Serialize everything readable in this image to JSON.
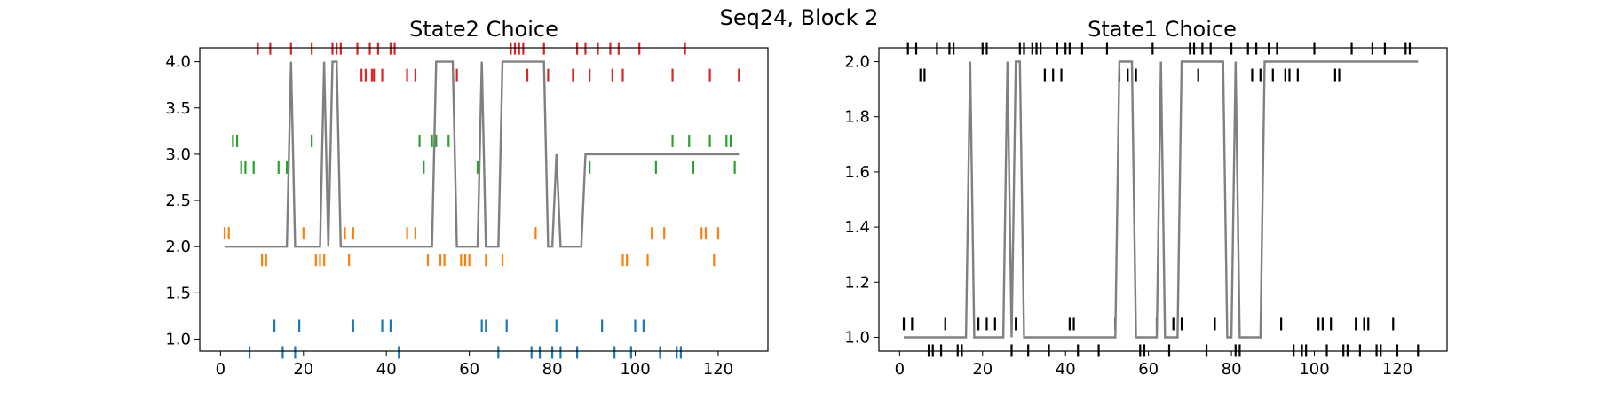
{
  "figure": {
    "suptitle": "Seq24, Block 2"
  },
  "chart_data": [
    {
      "type": "line",
      "title": "State2 Choice",
      "xlabel": "",
      "ylabel": "",
      "xlim": [
        -5,
        132
      ],
      "ylim": [
        0.87,
        4.15
      ],
      "xticks": [
        0,
        20,
        40,
        60,
        80,
        100,
        120
      ],
      "yticks": [
        1.0,
        1.5,
        2.0,
        2.5,
        3.0,
        3.5,
        4.0
      ],
      "ytick_labels": [
        "1.0",
        "1.5",
        "2.0",
        "2.5",
        "3.0",
        "3.5",
        "4.0"
      ],
      "grid": false,
      "tick_series": [
        {
          "level": 4,
          "color": "#d62728",
          "events": [
            {
              "x": 9,
              "o": 1
            },
            {
              "x": 12,
              "o": 1
            },
            {
              "x": 17,
              "o": 1
            },
            {
              "x": 22,
              "o": 1
            },
            {
              "x": 27,
              "o": 1
            },
            {
              "x": 28,
              "o": 1
            },
            {
              "x": 29,
              "o": 1
            },
            {
              "x": 33,
              "o": 1
            },
            {
              "x": 34,
              "o": -1
            },
            {
              "x": 35,
              "o": -1
            },
            {
              "x": 36,
              "o": 1
            },
            {
              "x": 36.5,
              "o": -1
            },
            {
              "x": 37,
              "o": -1
            },
            {
              "x": 38,
              "o": 1
            },
            {
              "x": 39,
              "o": -1
            },
            {
              "x": 41,
              "o": 1
            },
            {
              "x": 42,
              "o": 1
            },
            {
              "x": 45,
              "o": -1
            },
            {
              "x": 47,
              "o": -1
            },
            {
              "x": 57,
              "o": -1
            },
            {
              "x": 70,
              "o": 1
            },
            {
              "x": 71,
              "o": 1
            },
            {
              "x": 72,
              "o": 1
            },
            {
              "x": 73,
              "o": 1
            },
            {
              "x": 74,
              "o": -1
            },
            {
              "x": 78,
              "o": 1
            },
            {
              "x": 79,
              "o": -1
            },
            {
              "x": 85,
              "o": -1
            },
            {
              "x": 86,
              "o": 1
            },
            {
              "x": 88,
              "o": 1
            },
            {
              "x": 89,
              "o": -1
            },
            {
              "x": 91,
              "o": 1
            },
            {
              "x": 94,
              "o": 1
            },
            {
              "x": 94.5,
              "o": -1
            },
            {
              "x": 96,
              "o": 1
            },
            {
              "x": 97,
              "o": -1
            },
            {
              "x": 101,
              "o": 1
            },
            {
              "x": 109,
              "o": -1
            },
            {
              "x": 112,
              "o": 1
            },
            {
              "x": 118,
              "o": -1
            },
            {
              "x": 125,
              "o": -1
            }
          ]
        },
        {
          "level": 3,
          "color": "#2ca02c",
          "events": [
            {
              "x": 3,
              "o": 1
            },
            {
              "x": 4,
              "o": 1
            },
            {
              "x": 5,
              "o": -1
            },
            {
              "x": 6,
              "o": -1
            },
            {
              "x": 8,
              "o": -1
            },
            {
              "x": 14,
              "o": -1
            },
            {
              "x": 16,
              "o": -1
            },
            {
              "x": 22,
              "o": 1
            },
            {
              "x": 48,
              "o": 1
            },
            {
              "x": 49,
              "o": -1
            },
            {
              "x": 51,
              "o": 1
            },
            {
              "x": 52,
              "o": 1
            },
            {
              "x": 55,
              "o": 1
            },
            {
              "x": 62,
              "o": -1
            },
            {
              "x": 89,
              "o": -1
            },
            {
              "x": 105,
              "o": -1
            },
            {
              "x": 109,
              "o": 1
            },
            {
              "x": 113,
              "o": 1
            },
            {
              "x": 114,
              "o": -1
            },
            {
              "x": 118,
              "o": 1
            },
            {
              "x": 122,
              "o": 1
            },
            {
              "x": 123,
              "o": 1
            },
            {
              "x": 124,
              "o": -1
            }
          ]
        },
        {
          "level": 2,
          "color": "#ff7f0e",
          "events": [
            {
              "x": 1,
              "o": 1
            },
            {
              "x": 2,
              "o": 1
            },
            {
              "x": 10,
              "o": -1
            },
            {
              "x": 11,
              "o": -1
            },
            {
              "x": 20,
              "o": 1
            },
            {
              "x": 23,
              "o": -1
            },
            {
              "x": 24,
              "o": -1
            },
            {
              "x": 25,
              "o": -1
            },
            {
              "x": 30,
              "o": 1
            },
            {
              "x": 31,
              "o": -1
            },
            {
              "x": 32,
              "o": 1
            },
            {
              "x": 45,
              "o": 1
            },
            {
              "x": 47,
              "o": 1
            },
            {
              "x": 50,
              "o": -1
            },
            {
              "x": 53,
              "o": -1
            },
            {
              "x": 54,
              "o": -1
            },
            {
              "x": 58,
              "o": -1
            },
            {
              "x": 59,
              "o": -1
            },
            {
              "x": 60,
              "o": -1
            },
            {
              "x": 64,
              "o": -1
            },
            {
              "x": 68,
              "o": -1
            },
            {
              "x": 76,
              "o": 1
            },
            {
              "x": 97,
              "o": -1
            },
            {
              "x": 98,
              "o": -1
            },
            {
              "x": 103,
              "o": -1
            },
            {
              "x": 104,
              "o": 1
            },
            {
              "x": 107,
              "o": 1
            },
            {
              "x": 116,
              "o": 1
            },
            {
              "x": 117,
              "o": 1
            },
            {
              "x": 119,
              "o": -1
            },
            {
              "x": 120,
              "o": 1
            }
          ]
        },
        {
          "level": 1,
          "color": "#1f77b4",
          "events": [
            {
              "x": 7,
              "o": -1
            },
            {
              "x": 13,
              "o": 1
            },
            {
              "x": 15,
              "o": -1
            },
            {
              "x": 18,
              "o": -1
            },
            {
              "x": 19,
              "o": 1
            },
            {
              "x": 32,
              "o": 1
            },
            {
              "x": 39,
              "o": 1
            },
            {
              "x": 41,
              "o": 1
            },
            {
              "x": 43,
              "o": -1
            },
            {
              "x": 63,
              "o": 1
            },
            {
              "x": 64,
              "o": 1
            },
            {
              "x": 67,
              "o": -1
            },
            {
              "x": 69,
              "o": 1
            },
            {
              "x": 75,
              "o": -1
            },
            {
              "x": 77,
              "o": -1
            },
            {
              "x": 80,
              "o": -1
            },
            {
              "x": 81,
              "o": 1
            },
            {
              "x": 82,
              "o": -1
            },
            {
              "x": 86,
              "o": -1
            },
            {
              "x": 92,
              "o": 1
            },
            {
              "x": 95,
              "o": -1
            },
            {
              "x": 99,
              "o": -1
            },
            {
              "x": 100,
              "o": 1
            },
            {
              "x": 102,
              "o": 1
            },
            {
              "x": 106,
              "o": -1
            },
            {
              "x": 110,
              "o": -1
            },
            {
              "x": 111,
              "o": -1
            }
          ]
        }
      ],
      "trace": {
        "color": "#808080",
        "x": [
          1,
          16,
          17,
          18,
          24,
          25,
          26,
          27,
          28,
          29,
          51,
          52,
          56,
          57,
          62,
          63,
          64,
          67,
          68,
          78,
          79,
          80,
          81,
          82,
          87,
          88,
          125
        ],
        "y": [
          2,
          2,
          4,
          2,
          2,
          4,
          2,
          4,
          4,
          2,
          2,
          4,
          4,
          2,
          2,
          4,
          2,
          2,
          4,
          4,
          2,
          2,
          3,
          2,
          2,
          3,
          3
        ]
      }
    },
    {
      "type": "line",
      "title": "State1 Choice",
      "xlabel": "",
      "ylabel": "",
      "xlim": [
        -5,
        132
      ],
      "ylim": [
        0.95,
        2.05
      ],
      "xticks": [
        0,
        20,
        40,
        60,
        80,
        100,
        120
      ],
      "yticks": [
        1.0,
        1.2,
        1.4,
        1.6,
        1.8,
        2.0
      ],
      "ytick_labels": [
        "1.0",
        "1.2",
        "1.4",
        "1.6",
        "1.8",
        "2.0"
      ],
      "grid": false,
      "tick_series": [
        {
          "level": 2,
          "color": "#000000",
          "events": [
            {
              "x": 2,
              "o": 1
            },
            {
              "x": 4,
              "o": 1
            },
            {
              "x": 5,
              "o": -1
            },
            {
              "x": 6,
              "o": -1
            },
            {
              "x": 9,
              "o": 1
            },
            {
              "x": 12,
              "o": 1
            },
            {
              "x": 13,
              "o": 1
            },
            {
              "x": 20,
              "o": 1
            },
            {
              "x": 21,
              "o": 1
            },
            {
              "x": 29,
              "o": 1
            },
            {
              "x": 30,
              "o": 1
            },
            {
              "x": 32,
              "o": 1
            },
            {
              "x": 33,
              "o": 1
            },
            {
              "x": 34,
              "o": 1
            },
            {
              "x": 35,
              "o": -1
            },
            {
              "x": 37,
              "o": -1
            },
            {
              "x": 38,
              "o": 1
            },
            {
              "x": 39,
              "o": -1
            },
            {
              "x": 40,
              "o": 1
            },
            {
              "x": 41,
              "o": 1
            },
            {
              "x": 44,
              "o": 1
            },
            {
              "x": 50,
              "o": 1
            },
            {
              "x": 53,
              "o": -1
            },
            {
              "x": 55,
              "o": -1
            },
            {
              "x": 57,
              "o": -1
            },
            {
              "x": 61,
              "o": 1
            },
            {
              "x": 70,
              "o": 1
            },
            {
              "x": 71,
              "o": 1
            },
            {
              "x": 72,
              "o": -1
            },
            {
              "x": 73,
              "o": 1
            },
            {
              "x": 75,
              "o": 1
            },
            {
              "x": 78,
              "o": -1
            },
            {
              "x": 80,
              "o": 1
            },
            {
              "x": 84,
              "o": 1
            },
            {
              "x": 85,
              "o": -1
            },
            {
              "x": 86,
              "o": 1
            },
            {
              "x": 87,
              "o": -1
            },
            {
              "x": 89,
              "o": 1
            },
            {
              "x": 90,
              "o": -1
            },
            {
              "x": 91,
              "o": 1
            },
            {
              "x": 93,
              "o": -1
            },
            {
              "x": 94,
              "o": -1
            },
            {
              "x": 96,
              "o": -1
            },
            {
              "x": 100,
              "o": 1
            },
            {
              "x": 105,
              "o": -1
            },
            {
              "x": 106,
              "o": -1
            },
            {
              "x": 109,
              "o": 1
            },
            {
              "x": 114,
              "o": 1
            },
            {
              "x": 117,
              "o": 1
            },
            {
              "x": 122,
              "o": 1
            },
            {
              "x": 123,
              "o": 1
            }
          ]
        },
        {
          "level": 1,
          "color": "#000000",
          "events": [
            {
              "x": 1,
              "o": 1
            },
            {
              "x": 3,
              "o": 1
            },
            {
              "x": 7,
              "o": -1
            },
            {
              "x": 8,
              "o": -1
            },
            {
              "x": 10,
              "o": -1
            },
            {
              "x": 11,
              "o": 1
            },
            {
              "x": 14,
              "o": -1
            },
            {
              "x": 15,
              "o": -1
            },
            {
              "x": 19,
              "o": 1
            },
            {
              "x": 21,
              "o": 1
            },
            {
              "x": 23,
              "o": 1
            },
            {
              "x": 27,
              "o": -1
            },
            {
              "x": 28,
              "o": 1
            },
            {
              "x": 31,
              "o": -1
            },
            {
              "x": 36,
              "o": -1
            },
            {
              "x": 41,
              "o": 1
            },
            {
              "x": 42,
              "o": 1
            },
            {
              "x": 43,
              "o": -1
            },
            {
              "x": 48,
              "o": -1
            },
            {
              "x": 52,
              "o": 1
            },
            {
              "x": 58,
              "o": -1
            },
            {
              "x": 59,
              "o": -1
            },
            {
              "x": 62,
              "o": 1
            },
            {
              "x": 65,
              "o": -1
            },
            {
              "x": 66,
              "o": 1
            },
            {
              "x": 68,
              "o": 1
            },
            {
              "x": 74,
              "o": -1
            },
            {
              "x": 76,
              "o": 1
            },
            {
              "x": 81,
              "o": -1
            },
            {
              "x": 82,
              "o": -1
            },
            {
              "x": 92,
              "o": 1
            },
            {
              "x": 95,
              "o": -1
            },
            {
              "x": 97,
              "o": -1
            },
            {
              "x": 98,
              "o": -1
            },
            {
              "x": 101,
              "o": 1
            },
            {
              "x": 102,
              "o": 1
            },
            {
              "x": 103,
              "o": -1
            },
            {
              "x": 104,
              "o": 1
            },
            {
              "x": 107,
              "o": -1
            },
            {
              "x": 108,
              "o": -1
            },
            {
              "x": 110,
              "o": 1
            },
            {
              "x": 111,
              "o": -1
            },
            {
              "x": 112,
              "o": 1
            },
            {
              "x": 113,
              "o": 1
            },
            {
              "x": 115,
              "o": -1
            },
            {
              "x": 116,
              "o": -1
            },
            {
              "x": 119,
              "o": 1
            },
            {
              "x": 120,
              "o": -1
            },
            {
              "x": 125,
              "o": -1
            }
          ]
        }
      ],
      "trace": {
        "color": "#808080",
        "x": [
          1,
          16,
          17,
          18,
          25,
          26,
          27,
          28,
          29,
          30,
          52,
          53,
          56,
          57,
          62,
          63,
          64,
          67,
          68,
          78,
          79,
          80,
          81,
          82,
          87,
          88,
          125
        ],
        "y": [
          1,
          1,
          2,
          1,
          1,
          2,
          1,
          2,
          2,
          1,
          1,
          2,
          2,
          1,
          1,
          2,
          1,
          1,
          2,
          2,
          1,
          1,
          2,
          1,
          1,
          2,
          2
        ]
      }
    }
  ]
}
